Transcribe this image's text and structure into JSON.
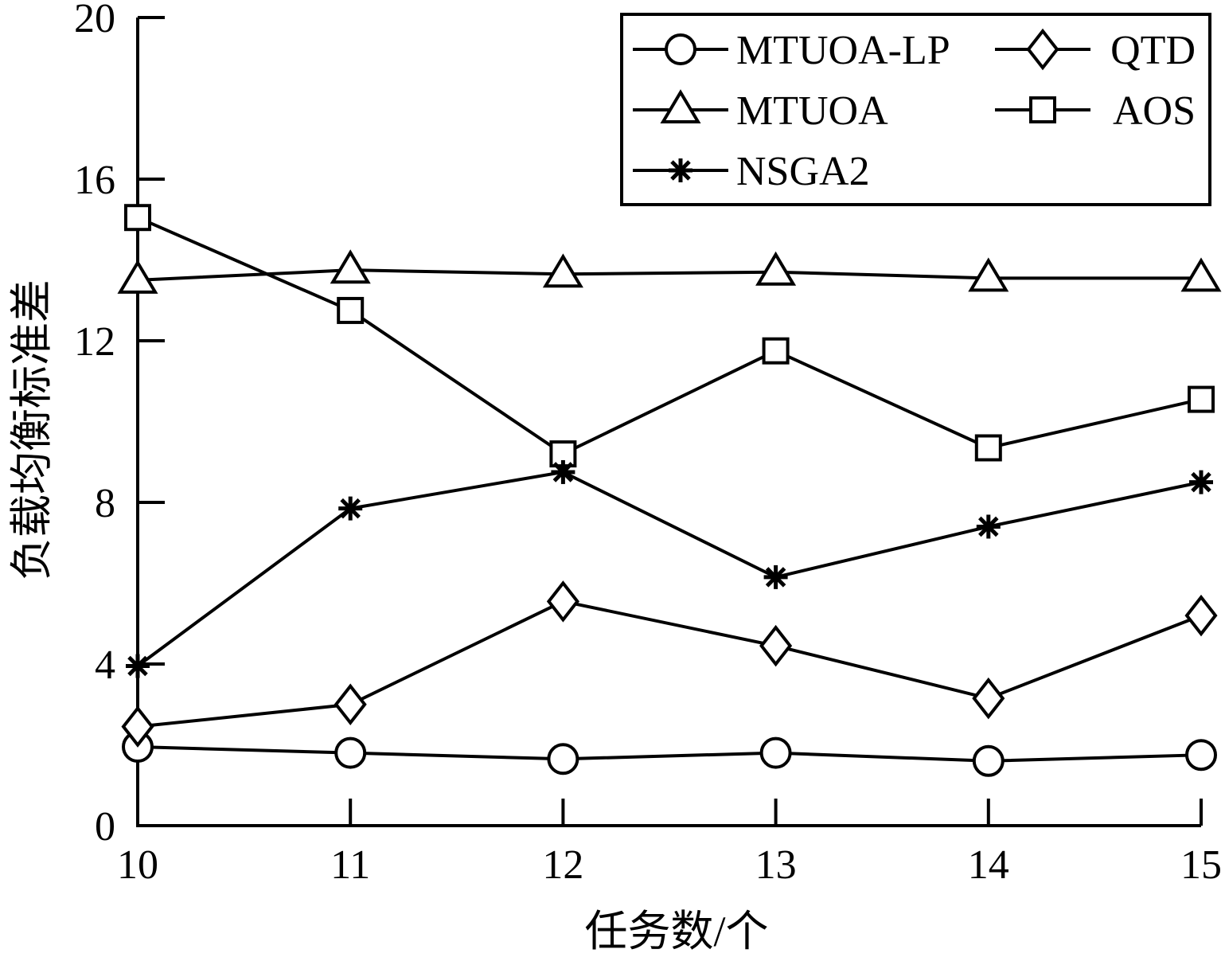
{
  "chart_data": {
    "type": "line",
    "xlabel": "任务数/个",
    "ylabel": "负载均衡标准差",
    "x": [
      10,
      11,
      12,
      13,
      14,
      15
    ],
    "x_ticks": [
      "10",
      "11",
      "12",
      "13",
      "14",
      "15"
    ],
    "y_ticks": [
      "0",
      "4",
      "8",
      "12",
      "16",
      "20"
    ],
    "xlim": [
      10,
      15
    ],
    "ylim": [
      0,
      20
    ],
    "grid": false,
    "legend_position": "top-right",
    "series": [
      {
        "name": "MTUOA-LP",
        "marker": "circle",
        "values": [
          1.95,
          1.8,
          1.65,
          1.8,
          1.6,
          1.75
        ]
      },
      {
        "name": "QTD",
        "marker": "diamond",
        "values": [
          2.45,
          3.0,
          5.55,
          4.45,
          3.15,
          5.2
        ]
      },
      {
        "name": "MTUOA",
        "marker": "triangle",
        "values": [
          13.5,
          13.75,
          13.65,
          13.7,
          13.55,
          13.55
        ]
      },
      {
        "name": "AOS",
        "marker": "square",
        "values": [
          15.05,
          12.75,
          9.2,
          11.75,
          9.35,
          10.55
        ]
      },
      {
        "name": "NSGA2",
        "marker": "asterisk",
        "values": [
          3.95,
          7.85,
          8.75,
          6.15,
          7.4,
          8.5
        ]
      }
    ],
    "colors": {
      "line": "#000000",
      "background": "#ffffff"
    }
  }
}
